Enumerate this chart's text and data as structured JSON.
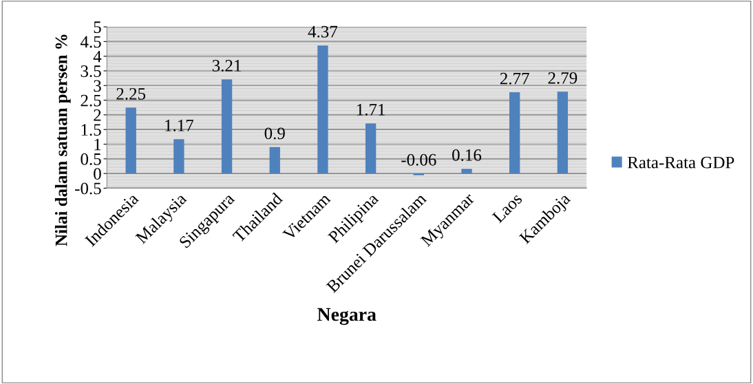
{
  "chart_data": {
    "type": "bar",
    "categories": [
      "Indonesia",
      "Malaysia",
      "Singapura",
      "Thailand",
      "Vietnam",
      "Philipina",
      "Brunei Darussalam",
      "Myanmar",
      "Laos",
      "Kamboja"
    ],
    "series": [
      {
        "name": "Rata-Rata GDP",
        "color": "#4f81bd",
        "values": [
          2.25,
          1.17,
          3.21,
          0.9,
          4.37,
          1.71,
          -0.06,
          0.16,
          2.77,
          2.79
        ]
      }
    ],
    "xlabel": "Negara",
    "ylabel": "Nilai dalam satuan persen %",
    "ylim": [
      -0.5,
      5
    ],
    "yticks": [
      -0.5,
      0,
      0.5,
      1,
      1.5,
      2,
      2.5,
      3,
      3.5,
      4,
      4.5,
      5
    ],
    "grid": "y",
    "legend": "right",
    "data_labels": true
  }
}
